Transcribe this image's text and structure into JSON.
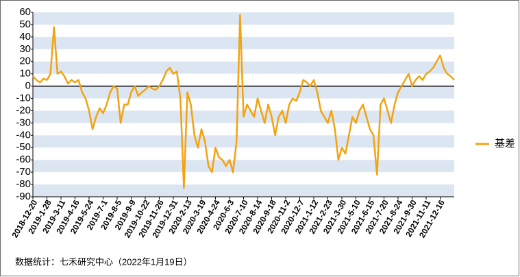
{
  "chart_data": {
    "type": "line",
    "categories": [
      "2018-12-20",
      null,
      null,
      null,
      "2019-1-28",
      null,
      null,
      null,
      "2019-3-11",
      null,
      null,
      null,
      "2019-4-16",
      null,
      null,
      null,
      "2019-5-24",
      null,
      null,
      null,
      "2019-7-1",
      null,
      null,
      null,
      "2019-8-5",
      null,
      null,
      null,
      "2019-9-9",
      null,
      null,
      null,
      "2019-10-22",
      null,
      null,
      null,
      "2019-11-26",
      null,
      null,
      null,
      "2019-12-31",
      null,
      null,
      null,
      "2020-2-13",
      null,
      null,
      null,
      "2020-3-19",
      null,
      null,
      null,
      "2020-4-24",
      null,
      null,
      null,
      "2020-6-3",
      null,
      null,
      null,
      "2020-7-10",
      null,
      null,
      null,
      "2020-8-14",
      null,
      null,
      null,
      "2020-9-18",
      null,
      null,
      null,
      "2020-11-2",
      null,
      null,
      null,
      "2020-12-7",
      null,
      null,
      null,
      "2021-1-12",
      null,
      null,
      null,
      "2021-2-23",
      null,
      null,
      null,
      "2021-3-30",
      null,
      null,
      null,
      "2021-5-10",
      null,
      null,
      null,
      "2021-6-15",
      null,
      null,
      null,
      "2021-7-20",
      null,
      null,
      null,
      "2021-8-24",
      null,
      null,
      null,
      "2021-9-30",
      null,
      null,
      null,
      "2021-11-11",
      null,
      null,
      null,
      "2021-12-16",
      null,
      null,
      null,
      null
    ],
    "series": [
      {
        "name": "基差",
        "color": "#f2a30f",
        "values": [
          8,
          5,
          3,
          6,
          5,
          10,
          48,
          10,
          12,
          8,
          2,
          5,
          3,
          5,
          -5,
          -10,
          -20,
          -35,
          -25,
          -18,
          -22,
          -15,
          -5,
          0,
          -2,
          -30,
          -15,
          -15,
          -5,
          0,
          -8,
          -5,
          -3,
          0,
          -2,
          -3,
          0,
          5,
          12,
          15,
          10,
          12,
          -10,
          -83,
          -5,
          -15,
          -40,
          -50,
          -35,
          -45,
          -65,
          -70,
          -50,
          -58,
          -60,
          -65,
          -60,
          -70,
          -45,
          58,
          -25,
          -15,
          -20,
          -25,
          -10,
          -20,
          -30,
          -15,
          -25,
          -40,
          -25,
          -20,
          -30,
          -15,
          -10,
          -12,
          -5,
          5,
          3,
          0,
          5,
          -5,
          -20,
          -25,
          -30,
          -20,
          -35,
          -60,
          -50,
          -55,
          -40,
          -25,
          -30,
          -20,
          -15,
          -25,
          -35,
          -40,
          -72,
          -15,
          -10,
          -20,
          -30,
          -15,
          -5,
          0,
          5,
          10,
          0,
          5,
          8,
          5,
          10,
          12,
          15,
          20,
          25,
          15,
          10,
          8,
          5
        ]
      }
    ],
    "ylim": [
      -90,
      60
    ],
    "yticks": [
      -90,
      -80,
      -70,
      -60,
      -50,
      -40,
      -30,
      -20,
      -10,
      0,
      10,
      20,
      30,
      40,
      50,
      60
    ],
    "grid": "bands",
    "legend": "right",
    "source": "数据统计：七禾研究中心（2022年1月19日）"
  }
}
